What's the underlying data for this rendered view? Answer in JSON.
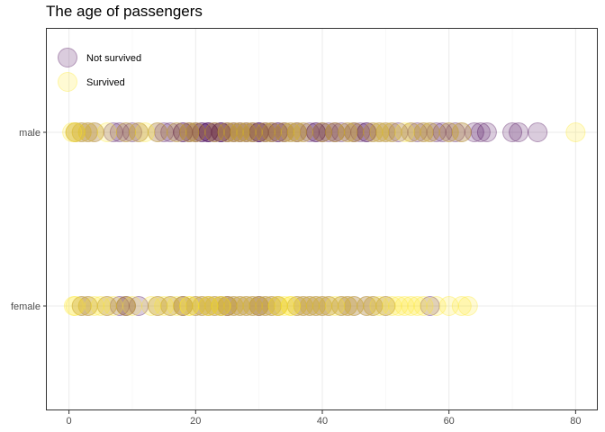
{
  "chart_data": {
    "type": "scatter",
    "title": "The age of passengers",
    "xlabel": "",
    "ylabel": "",
    "xlim": [
      -3.5,
      83.5
    ],
    "x_ticks": [
      0,
      20,
      40,
      60,
      80
    ],
    "categories": [
      "female",
      "male"
    ],
    "grid": true,
    "legend_position": "top-left",
    "series": [
      {
        "name": "Not survived",
        "color": "#440154",
        "opacity": 0.2,
        "points": [
          {
            "category": "male",
            "ages": [
              1,
              2,
              3,
              4,
              7,
              8,
              9,
              10,
              11,
              14,
              15,
              16,
              17,
              18,
              18,
              19,
              19,
              20,
              20,
              21,
              21,
              22,
              22,
              22,
              23,
              23,
              24,
              24,
              24,
              25,
              25,
              26,
              26,
              27,
              27,
              28,
              28,
              29,
              29,
              30,
              30,
              30,
              31,
              31,
              32,
              32,
              33,
              33,
              34,
              34,
              35,
              36,
              36,
              37,
              38,
              39,
              39,
              40,
              40,
              41,
              42,
              42,
              43,
              44,
              45,
              45,
              46,
              47,
              47,
              48,
              49,
              50,
              51,
              52,
              54,
              55,
              56,
              57,
              58,
              59,
              60,
              61,
              62,
              64,
              65,
              66,
              70,
              71,
              74
            ]
          },
          {
            "category": "female",
            "ages": [
              2,
              3,
              6,
              8,
              9,
              9,
              11,
              14,
              16,
              18,
              18,
              20,
              21,
              22,
              23,
              24,
              25,
              25,
              26,
              27,
              28,
              29,
              30,
              30,
              31,
              32,
              33,
              36,
              37,
              38,
              39,
              40,
              41,
              43,
              44,
              45,
              47,
              48,
              50,
              57
            ]
          }
        ]
      },
      {
        "name": "Survived",
        "color": "#fde725",
        "opacity": 0.2,
        "points": [
          {
            "category": "male",
            "ages": [
              0.5,
              1,
              1,
              2,
              3,
              4,
              6,
              9,
              11,
              12,
              14,
              17,
              19,
              20,
              23,
              25,
              26,
              27,
              28,
              29,
              31,
              32,
              34,
              35,
              36,
              37,
              40,
              42,
              44,
              45,
              48,
              49,
              50,
              51,
              53,
              54,
              56,
              57,
              60,
              62,
              80
            ]
          },
          {
            "category": "female",
            "ages": [
              0.75,
              1,
              2,
              3,
              4,
              5,
              6,
              7,
              9,
              10,
              13,
              14,
              15,
              16,
              17,
              18,
              19,
              19,
              20,
              21,
              22,
              22,
              23,
              24,
              24,
              25,
              26,
              27,
              28,
              29,
              30,
              31,
              32,
              33,
              33,
              34,
              35,
              35,
              36,
              37,
              38,
              39,
              40,
              41,
              42,
              43,
              44,
              45,
              47,
              48,
              49,
              50,
              51,
              52,
              53,
              54,
              55,
              56,
              58,
              60,
              62,
              63
            ]
          }
        ]
      }
    ]
  }
}
